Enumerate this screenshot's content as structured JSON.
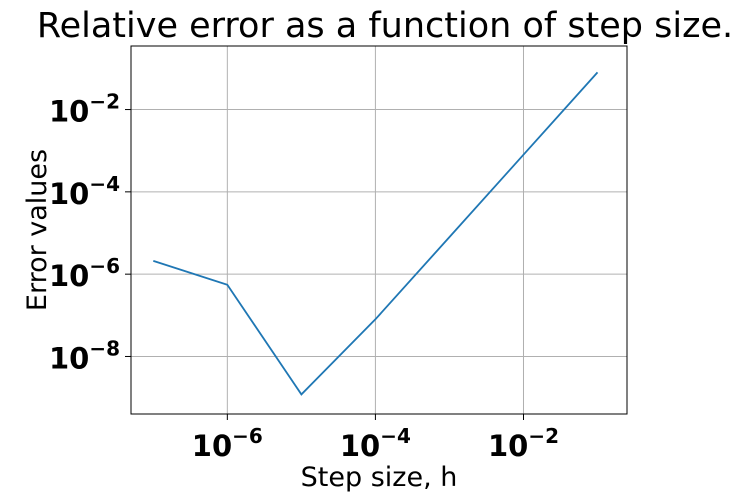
{
  "chart_data": {
    "type": "line",
    "title": "Relative error as a function of step size.",
    "xlabel": "Step size, h",
    "ylabel": "Error values",
    "xscale": "log",
    "yscale": "log",
    "xlim": [
      5e-08,
      0.25
    ],
    "ylim": [
      4e-10,
      0.35
    ],
    "grid": true,
    "line_color": "#1f77b4",
    "xticks": [
      {
        "value": 1e-06,
        "base": "10",
        "exp": "−6"
      },
      {
        "value": 0.0001,
        "base": "10",
        "exp": "−4"
      },
      {
        "value": 0.01,
        "base": "10",
        "exp": "−2"
      }
    ],
    "yticks": [
      {
        "value": 1e-08,
        "base": "10",
        "exp": "−8"
      },
      {
        "value": 1e-06,
        "base": "10",
        "exp": "−6"
      },
      {
        "value": 0.0001,
        "base": "10",
        "exp": "−4"
      },
      {
        "value": 0.01,
        "base": "10",
        "exp": "−2"
      }
    ],
    "series": [
      {
        "x": [
          1e-07,
          1e-06,
          1e-05,
          0.0001,
          0.001,
          0.01,
          0.1
        ],
        "y": [
          2.1e-06,
          5.5e-07,
          1.2e-09,
          8e-08,
          8e-06,
          0.0008,
          0.08
        ]
      }
    ]
  }
}
